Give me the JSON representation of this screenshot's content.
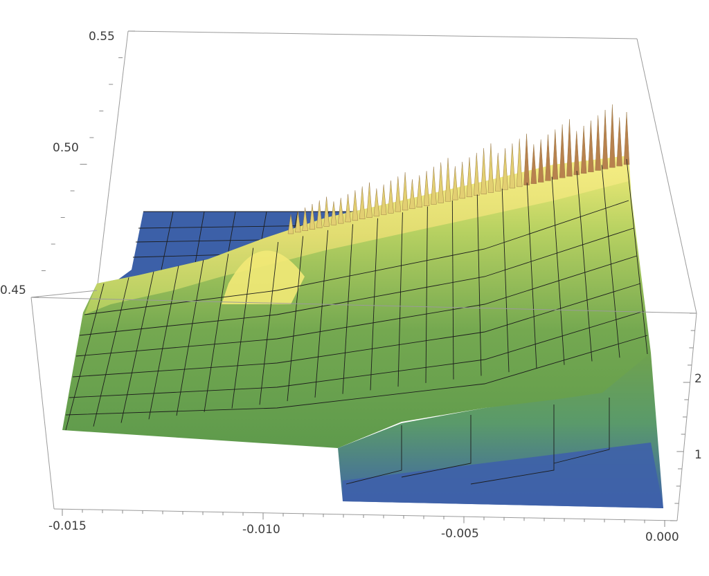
{
  "chart_data": {
    "type": "surface3d",
    "title": "",
    "x_axis": {
      "label": "",
      "range": [
        -0.016,
        0.0
      ],
      "ticks": [
        -0.015,
        -0.01,
        -0.005,
        0.0
      ],
      "tick_labels": [
        "-0.015",
        "-0.010",
        "-0.005",
        "0.000"
      ]
    },
    "y_axis": {
      "label": "",
      "range": [
        0,
        3
      ],
      "ticks": [
        1,
        2
      ],
      "tick_labels": [
        "1",
        "2"
      ]
    },
    "z_axis": {
      "label": "",
      "range": [
        0.45,
        0.55
      ],
      "ticks": [
        0.45,
        0.5,
        0.55
      ],
      "tick_labels": [
        "0.45",
        "0.50",
        "0.55"
      ]
    },
    "colormap": [
      "#3b5fa6",
      "#5c9a4e",
      "#a9c85a",
      "#f3ea78",
      "#c89a5c",
      "#8a3b28"
    ],
    "mesh": true,
    "boxed": true
  }
}
